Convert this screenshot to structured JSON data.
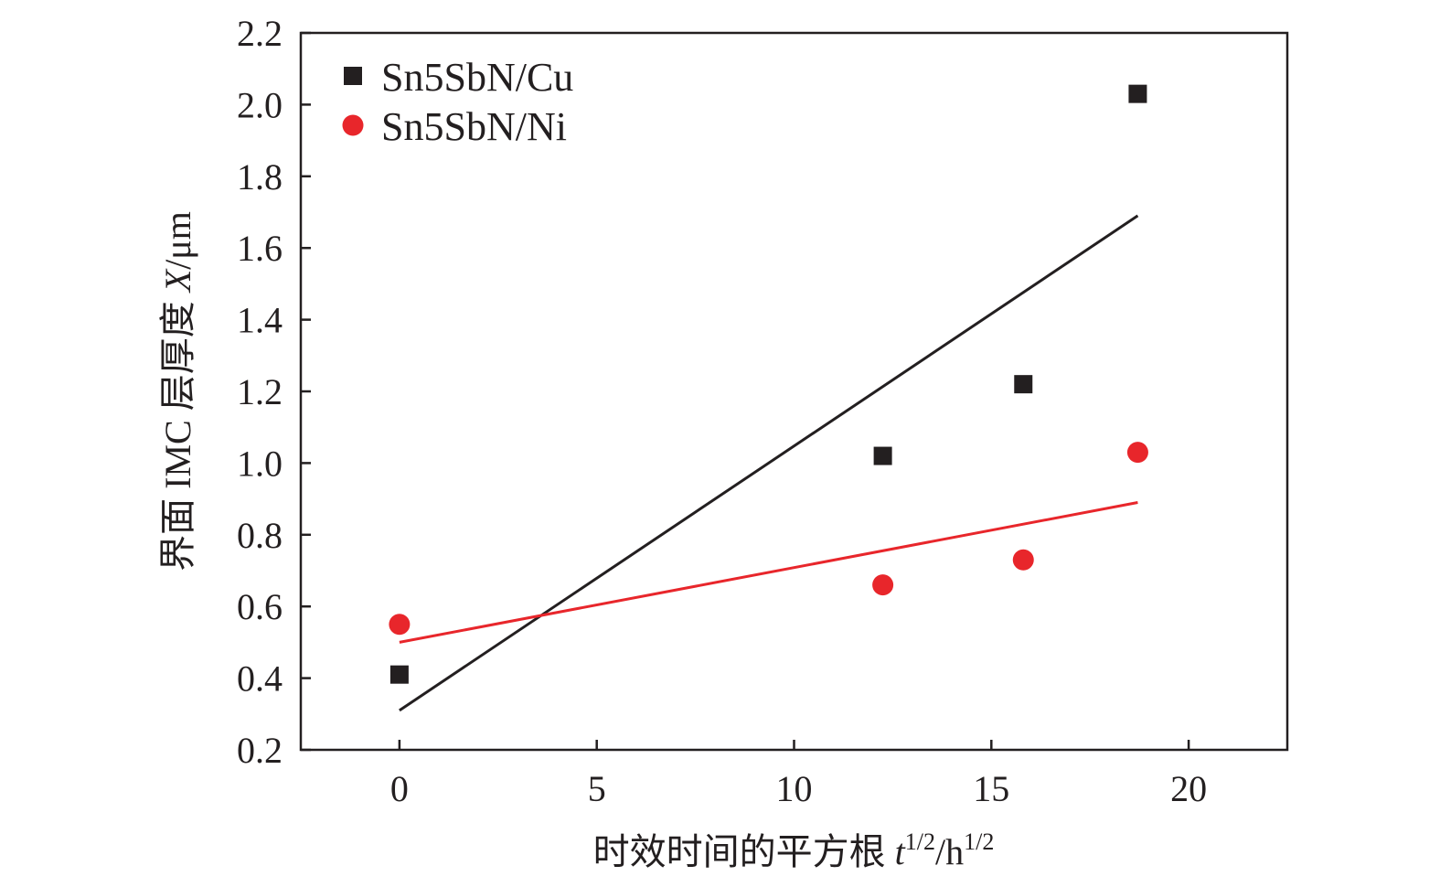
{
  "chart_data": {
    "type": "scatter",
    "title": "",
    "xlabel": {
      "main": "时效时间的平方根 ",
      "var": "t",
      "sup1": "1/2",
      "mid": "/h",
      "sup2": "1/2"
    },
    "ylabel": {
      "main": "界面 IMC 层厚度 ",
      "var": "X",
      "unit": "/μm"
    },
    "xlim": [
      -2.5,
      22.5
    ],
    "ylim": [
      0.2,
      2.2
    ],
    "xticks": [
      0,
      5,
      10,
      15,
      20
    ],
    "xtick_labels": [
      "0",
      "5",
      "10",
      "15",
      "20"
    ],
    "yticks": [
      0.2,
      0.4,
      0.6,
      0.8,
      1.0,
      1.2,
      1.4,
      1.6,
      1.8,
      2.0,
      2.2
    ],
    "ytick_labels": [
      "0.2",
      "0.4",
      "0.6",
      "0.8",
      "1.0",
      "1.2",
      "1.4",
      "1.6",
      "1.8",
      "2.0",
      "2.2"
    ],
    "grid": false,
    "legend_position": "top-left",
    "series": [
      {
        "name": "Sn5SbN/Cu",
        "marker": "square",
        "color": "#231f20",
        "x": [
          0,
          12.25,
          15.81,
          18.71
        ],
        "y": [
          0.41,
          1.02,
          1.22,
          2.03
        ],
        "fit": {
          "x": [
            0,
            18.71
          ],
          "y": [
            0.31,
            1.69
          ]
        }
      },
      {
        "name": "Sn5SbN/Ni",
        "marker": "circle",
        "color": "#e8262b",
        "x": [
          0,
          12.25,
          15.81,
          18.71
        ],
        "y": [
          0.55,
          0.66,
          0.73,
          1.03
        ],
        "fit": {
          "x": [
            0,
            18.71
          ],
          "y": [
            0.5,
            0.89
          ]
        }
      }
    ]
  }
}
